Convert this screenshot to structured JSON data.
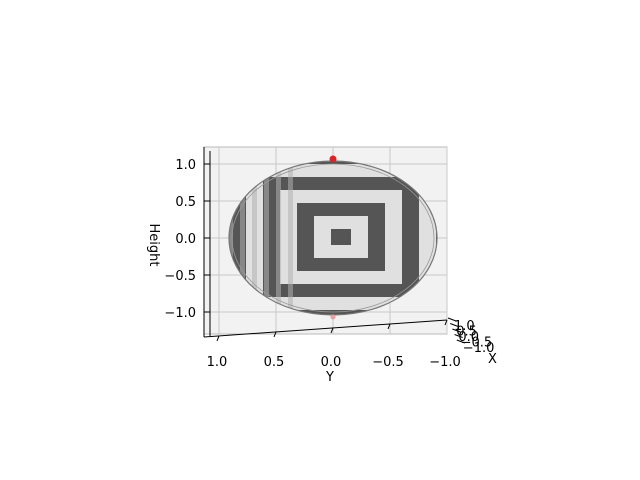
{
  "chart_data": {
    "type": "surface3d",
    "title": "",
    "xlabel": "X",
    "ylabel": "Y",
    "zlabel": "Height",
    "view": "viewed along the X axis",
    "surface": "ellipsoid with alternating concentric square bands (dark/light), top marker point in red",
    "x_ticks": [
      "1.0",
      "0.5",
      "0.0",
      "−0.5",
      "−1.0"
    ],
    "y_ticks": [
      "1.0",
      "0.5",
      "0.0",
      "−0.5",
      "−1.0"
    ],
    "z_ticks": [
      "1.0",
      "0.5",
      "0.0",
      "−0.5",
      "−1.0"
    ],
    "y_values": [
      1.0,
      0.5,
      0.0,
      -0.5,
      -1.0
    ],
    "z_values": [
      1.0,
      0.5,
      0.0,
      -0.5,
      -1.0
    ],
    "ylim": [
      1.15,
      -1.1
    ],
    "zlim": [
      -1.1,
      1.15
    ],
    "bands": 6,
    "marker": {
      "y": 0.0,
      "z": 1.2,
      "color": "#d62728"
    },
    "colors": {
      "dark": "#555555",
      "light": "#e0e0e0",
      "pane": "#f2f2f2",
      "grid": "#c8c8c8"
    }
  }
}
